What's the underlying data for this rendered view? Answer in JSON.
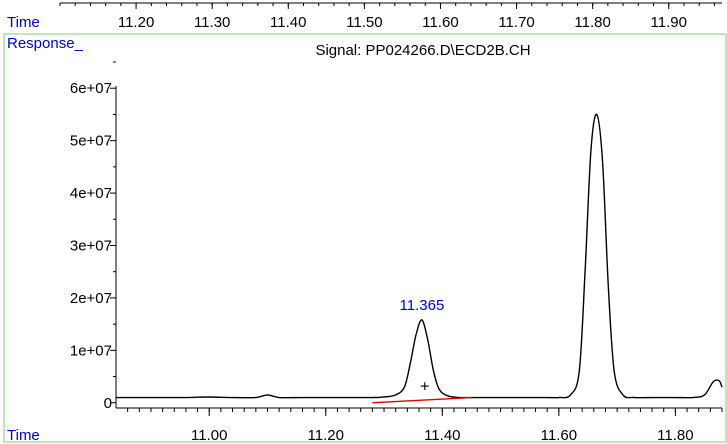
{
  "top_axis": {
    "label": "Time",
    "ticks": [
      11.2,
      11.3,
      11.4,
      11.5,
      11.6,
      11.7,
      11.8,
      11.9
    ],
    "tick_labels": [
      "11.20",
      "11.30",
      "11.40",
      "11.50",
      "11.60",
      "11.70",
      "11.80",
      "11.90"
    ],
    "x_range": [
      11.1,
      11.97
    ]
  },
  "panel": {
    "response_label": "Response_",
    "signal_title": "Signal: PP024266.D\\ECD2B.CH"
  },
  "colors": {
    "axis_label": "#0000cc",
    "peak_label": "#0000cc",
    "baseline": "#e00000",
    "trace": "#000000",
    "frame": "#90d890"
  },
  "chart_data": {
    "type": "line",
    "title": "Signal: PP024266.D\\ECD2B.CH",
    "xlabel": "Time",
    "ylabel": "Response_",
    "xlim": [
      10.84,
      11.88
    ],
    "ylim": [
      -1000000,
      65000000
    ],
    "x_ticks": [
      11.0,
      11.2,
      11.4,
      11.6,
      11.8
    ],
    "x_tick_labels": [
      "11.00",
      "11.20",
      "11.40",
      "11.60",
      "11.80"
    ],
    "y_ticks": [
      0,
      10000000,
      20000000,
      30000000,
      40000000,
      50000000,
      60000000
    ],
    "y_tick_labels": [
      "0",
      "1e+07",
      "2e+07",
      "3e+07",
      "4e+07",
      "5e+07",
      "6e+07"
    ],
    "grid": false,
    "series": [
      {
        "x": [
          10.84,
          10.9,
          10.96,
          11.0,
          11.04,
          11.08,
          11.1,
          11.12,
          11.16,
          11.2,
          11.24,
          11.28,
          11.3,
          11.32,
          11.335,
          11.345,
          11.355,
          11.365,
          11.375,
          11.385,
          11.395,
          11.41,
          11.43,
          11.46,
          11.5,
          11.54,
          11.58,
          11.6,
          11.62,
          11.635,
          11.645,
          11.655,
          11.665,
          11.675,
          11.685,
          11.695,
          11.71,
          11.73,
          11.76,
          11.8,
          11.83,
          11.85,
          11.865,
          11.875,
          11.88
        ],
        "y": [
          1000000,
          1000000,
          1000000,
          1100000,
          1000000,
          1000000,
          1500000,
          1000000,
          1000000,
          1000000,
          1000000,
          1000000,
          1100000,
          1500000,
          3000000,
          7500000,
          13000000,
          15800000,
          12000000,
          6000000,
          2500000,
          1300000,
          1000000,
          1000000,
          1000000,
          1000000,
          1000000,
          1000000,
          1500000,
          6000000,
          25000000,
          48000000,
          55000000,
          46000000,
          22000000,
          6000000,
          1500000,
          1000000,
          1000000,
          1000000,
          1000000,
          1500000,
          4000000,
          4200000,
          3000000
        ]
      }
    ],
    "baseline_segment": {
      "x": [
        11.28,
        11.45
      ],
      "y": [
        0,
        1000000
      ]
    },
    "annotations": [
      {
        "text": "11.365",
        "x": 11.365,
        "y": 15800000
      },
      {
        "text": "+",
        "x": 11.37,
        "y": 3300000
      }
    ]
  }
}
